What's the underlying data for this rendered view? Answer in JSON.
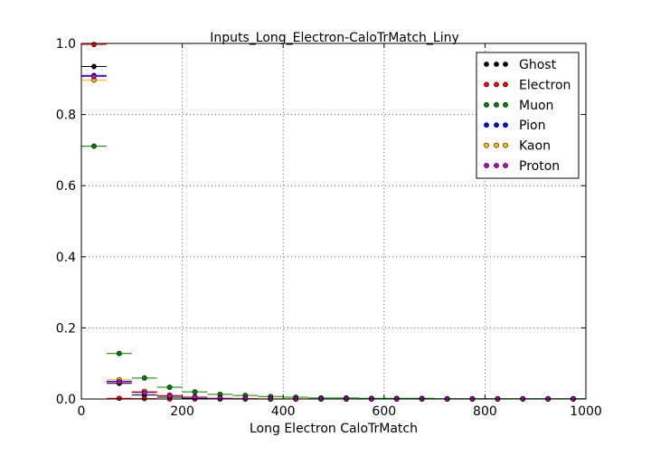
{
  "chart_data": {
    "type": "scatter",
    "title": "Inputs_Long_Electron-CaloTrMatch_Liny",
    "xlabel": "Long Electron CaloTrMatch",
    "ylabel": "",
    "xlim": [
      0,
      1000
    ],
    "ylim": [
      0,
      1.0
    ],
    "x_ticks": [
      "0",
      "200",
      "400",
      "600",
      "800",
      "1000"
    ],
    "y_ticks": [
      "0.0",
      "0.2",
      "0.4",
      "0.6",
      "0.8",
      "1.0"
    ],
    "grid": true,
    "legend_position": "top-right",
    "bin_width": 50,
    "x": [
      25,
      75,
      125,
      175,
      225,
      275,
      325,
      375,
      425,
      475,
      525,
      575,
      625,
      675,
      725,
      775,
      825,
      875,
      925,
      975
    ],
    "series": [
      {
        "name": "Ghost",
        "color": "#000000",
        "values": [
          0.935,
          0.044,
          0.011,
          0.005,
          0.002,
          0.001,
          0.0,
          0.0,
          0.0,
          0.0,
          0.0,
          0.0,
          0.0,
          0.0,
          0.0,
          0.0,
          0.0,
          0.0,
          0.0,
          0.0
        ]
      },
      {
        "name": "Electron",
        "color": "#ff0000",
        "values": [
          0.997,
          0.002,
          0.001,
          0.0,
          0.0,
          0.0,
          0.0,
          0.0,
          0.0,
          0.0,
          0.0,
          0.0,
          0.0,
          0.0,
          0.0,
          0.0,
          0.0,
          0.0,
          0.0,
          0.0
        ]
      },
      {
        "name": "Muon",
        "color": "#008000",
        "values": [
          0.711,
          0.128,
          0.059,
          0.033,
          0.02,
          0.013,
          0.01,
          0.007,
          0.005,
          0.003,
          0.003,
          0.002,
          0.002,
          0.002,
          0.001,
          0.001,
          0.001,
          0.001,
          0.001,
          0.001
        ]
      },
      {
        "name": "Pion",
        "color": "#0000ff",
        "values": [
          0.91,
          0.05,
          0.02,
          0.01,
          0.005,
          0.002,
          0.001,
          0.0,
          0.0,
          0.0,
          0.0,
          0.0,
          0.0,
          0.0,
          0.0,
          0.0,
          0.0,
          0.0,
          0.0,
          0.0
        ]
      },
      {
        "name": "Kaon",
        "color": "#ffbf00",
        "values": [
          0.897,
          0.054,
          0.022,
          0.011,
          0.006,
          0.003,
          0.002,
          0.001,
          0.001,
          0.0,
          0.0,
          0.0,
          0.0,
          0.0,
          0.0,
          0.0,
          0.0,
          0.0,
          0.0,
          0.0
        ]
      },
      {
        "name": "Proton",
        "color": "#bf00bf",
        "values": [
          0.907,
          0.048,
          0.018,
          0.009,
          0.005,
          0.002,
          0.001,
          0.0,
          0.0,
          0.0,
          0.0,
          0.0,
          0.0,
          0.0,
          0.0,
          0.0,
          0.0,
          0.0,
          0.0,
          0.0
        ]
      }
    ]
  }
}
